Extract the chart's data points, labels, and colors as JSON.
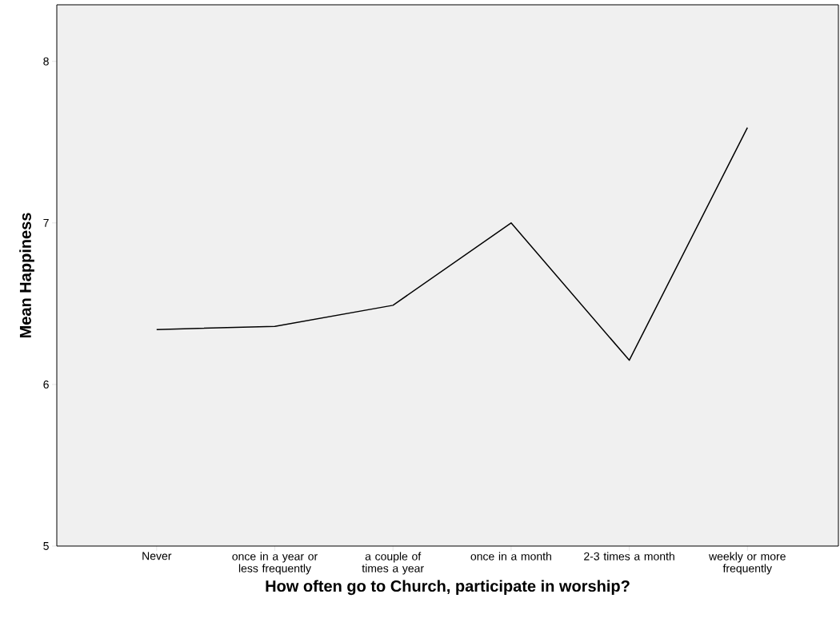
{
  "chart_data": {
    "type": "line",
    "xlabel": "How often go to Church, participate in worship?",
    "ylabel": "Mean Happiness",
    "categories": [
      "Never",
      "once in a year or less frequently",
      "a couple of times a year",
      "once in a month",
      "2-3 times a month",
      "weekly or more frequently"
    ],
    "values": [
      6.34,
      6.36,
      6.49,
      7.0,
      6.15,
      7.59
    ],
    "color": "#000000",
    "marker": "none",
    "line_style": "solid",
    "grid": false,
    "ylim": [
      5,
      8.35
    ],
    "yticks": [
      5,
      6,
      7,
      8
    ]
  }
}
